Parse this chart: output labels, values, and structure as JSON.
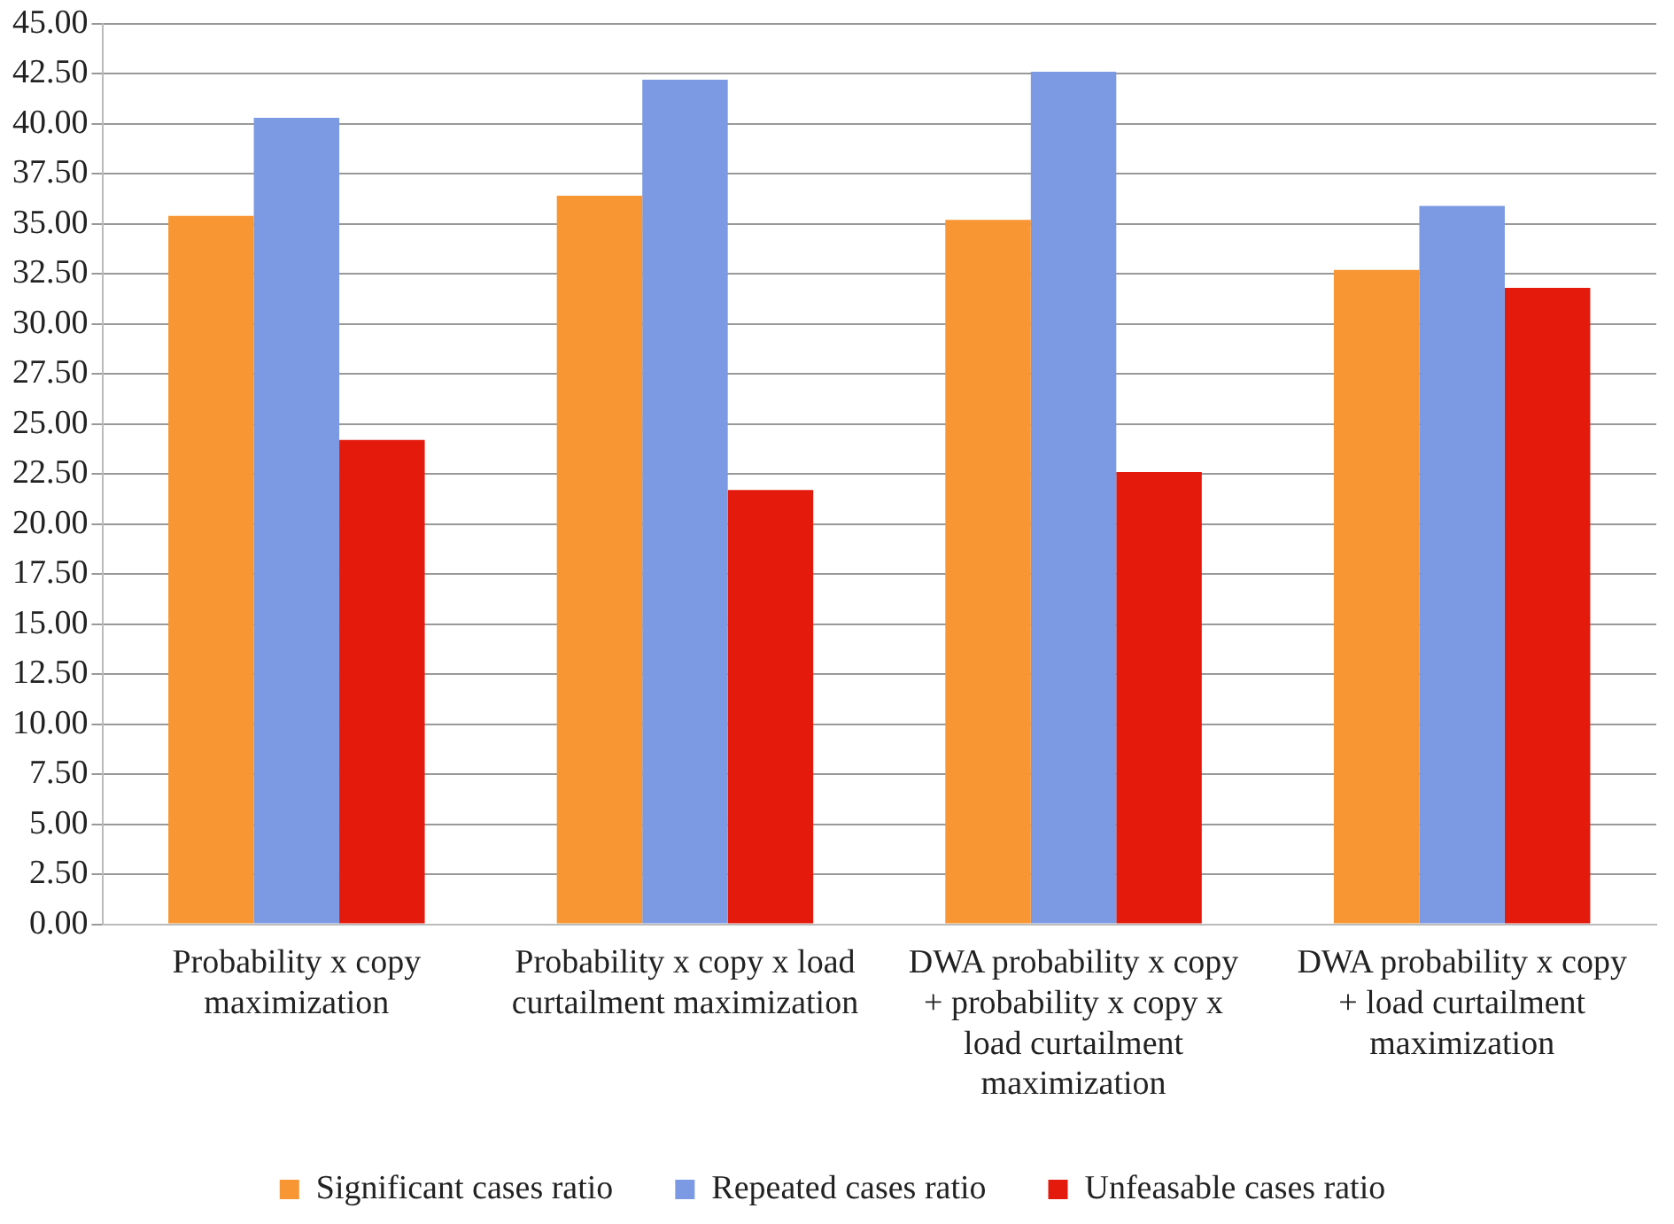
{
  "chart_data": {
    "type": "bar",
    "categories": [
      "Probability x copy maximization",
      "Probability x copy x load curtailment maximization",
      "DWA probability x copy + probability x copy x load curtailment maximization",
      "DWA probability x copy + load curtailment maximization"
    ],
    "series": [
      {
        "name": "Significant cases ratio",
        "color": "#f79633",
        "values": [
          35.4,
          36.4,
          35.2,
          32.7
        ]
      },
      {
        "name": "Repeated cases ratio",
        "color": "#7b9ae3",
        "values": [
          40.3,
          42.2,
          42.6,
          35.9
        ]
      },
      {
        "name": "Unfeasable cases ratio",
        "color": "#e31a0c",
        "values": [
          24.2,
          21.7,
          22.6,
          31.8
        ]
      }
    ],
    "ylim": [
      0,
      45
    ],
    "yticks": [
      {
        "value": 0,
        "label": "0.00"
      },
      {
        "value": 2.5,
        "label": "2.50"
      },
      {
        "value": 5,
        "label": "5.00"
      },
      {
        "value": 7.5,
        "label": "7.50"
      },
      {
        "value": 10,
        "label": "10.00"
      },
      {
        "value": 12.5,
        "label": "12.50"
      },
      {
        "value": 15,
        "label": "15.00"
      },
      {
        "value": 17.5,
        "label": "17.50"
      },
      {
        "value": 20,
        "label": "20.00"
      },
      {
        "value": 22.5,
        "label": "22.50"
      },
      {
        "value": 25,
        "label": "25.00"
      },
      {
        "value": 27.5,
        "label": "27.50"
      },
      {
        "value": 30,
        "label": "30.00"
      },
      {
        "value": 32.5,
        "label": "32.50"
      },
      {
        "value": 35,
        "label": "35.00"
      },
      {
        "value": 37.5,
        "label": "37.50"
      },
      {
        "value": 40,
        "label": "40.00"
      },
      {
        "value": 42.5,
        "label": "42.50"
      },
      {
        "value": 45,
        "label": "45.00"
      }
    ],
    "grid": "y",
    "legend": "bottom"
  }
}
